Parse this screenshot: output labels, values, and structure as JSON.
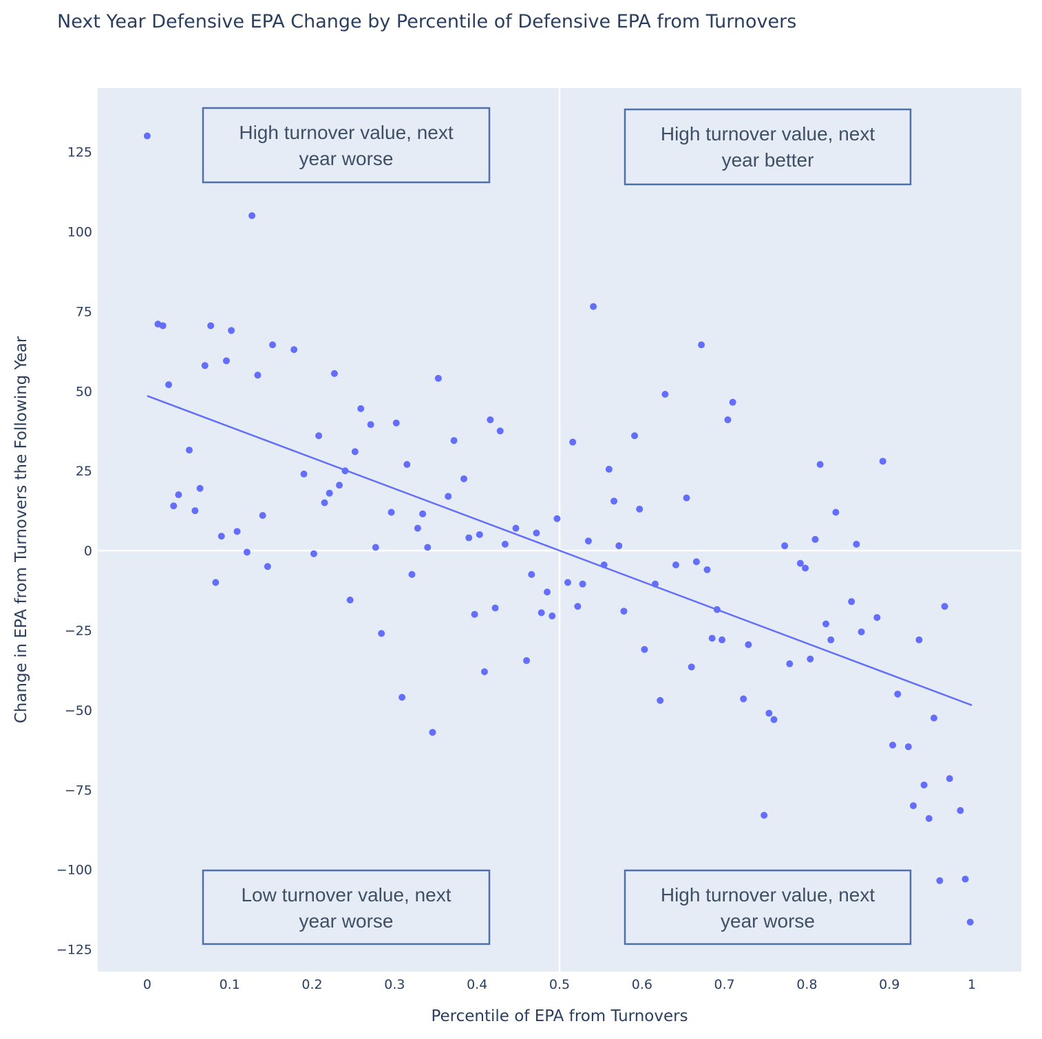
{
  "chart_data": {
    "type": "scatter",
    "title": "Next Year Defensive EPA Change by Percentile of Defensive EPA from Turnovers",
    "xlabel": "Percentile of EPA from Turnovers",
    "ylabel": "Change in EPA from Turnovers the Following Year",
    "xlim": [
      -0.06,
      1.06
    ],
    "ylim": [
      -132,
      145
    ],
    "x_ticks": [
      0,
      0.1,
      0.2,
      0.3,
      0.4,
      0.5,
      0.6,
      0.7,
      0.8,
      0.9,
      1
    ],
    "x_tick_labels": [
      "0",
      "0.1",
      "0.2",
      "0.3",
      "0.4",
      "0.5",
      "0.6",
      "0.7",
      "0.8",
      "0.9",
      "1"
    ],
    "y_ticks": [
      125,
      100,
      75,
      50,
      25,
      0,
      -25,
      -50,
      -75,
      -100,
      -125
    ],
    "y_tick_labels": [
      "125",
      "100",
      "75",
      "50",
      "25",
      "0",
      "−25",
      "−50",
      "−75",
      "−100",
      "−125"
    ],
    "reference_lines": {
      "x": 0.5,
      "y": 0
    },
    "marker_color": "#636efa",
    "plot_bg": "#e5ecf6",
    "trendline": {
      "x": [
        0,
        1
      ],
      "y": [
        48.5,
        -48.5
      ]
    },
    "points": [
      [
        0.0,
        130
      ],
      [
        0.013,
        71
      ],
      [
        0.019,
        70.5
      ],
      [
        0.026,
        52
      ],
      [
        0.032,
        14
      ],
      [
        0.038,
        17.5
      ],
      [
        0.051,
        31.5
      ],
      [
        0.058,
        12.5
      ],
      [
        0.064,
        19.5
      ],
      [
        0.07,
        58
      ],
      [
        0.077,
        70.5
      ],
      [
        0.083,
        -10
      ],
      [
        0.09,
        4.5
      ],
      [
        0.096,
        59.5
      ],
      [
        0.102,
        69
      ],
      [
        0.109,
        6
      ],
      [
        0.121,
        -0.5
      ],
      [
        0.127,
        105
      ],
      [
        0.134,
        55
      ],
      [
        0.14,
        11
      ],
      [
        0.146,
        -5
      ],
      [
        0.152,
        64.5
      ],
      [
        0.178,
        63
      ],
      [
        0.19,
        24
      ],
      [
        0.202,
        -1
      ],
      [
        0.208,
        36
      ],
      [
        0.215,
        15
      ],
      [
        0.221,
        18
      ],
      [
        0.227,
        55.5
      ],
      [
        0.233,
        20.5
      ],
      [
        0.24,
        25
      ],
      [
        0.246,
        -15.5
      ],
      [
        0.252,
        31
      ],
      [
        0.259,
        44.5
      ],
      [
        0.271,
        39.5
      ],
      [
        0.277,
        1
      ],
      [
        0.284,
        -26
      ],
      [
        0.296,
        12
      ],
      [
        0.302,
        40
      ],
      [
        0.309,
        -46
      ],
      [
        0.315,
        27
      ],
      [
        0.321,
        -7.5
      ],
      [
        0.328,
        7
      ],
      [
        0.334,
        11.5
      ],
      [
        0.34,
        1
      ],
      [
        0.346,
        -57
      ],
      [
        0.353,
        54
      ],
      [
        0.365,
        17
      ],
      [
        0.372,
        34.5
      ],
      [
        0.384,
        22.5
      ],
      [
        0.39,
        4
      ],
      [
        0.397,
        -20
      ],
      [
        0.403,
        5
      ],
      [
        0.409,
        -38
      ],
      [
        0.416,
        41
      ],
      [
        0.422,
        -18
      ],
      [
        0.428,
        37.5
      ],
      [
        0.434,
        2
      ],
      [
        0.447,
        7
      ],
      [
        0.46,
        -34.5
      ],
      [
        0.466,
        -7.5
      ],
      [
        0.472,
        5.5
      ],
      [
        0.478,
        -19.5
      ],
      [
        0.485,
        -13
      ],
      [
        0.491,
        -20.5
      ],
      [
        0.497,
        10
      ],
      [
        0.51,
        -10
      ],
      [
        0.516,
        34
      ],
      [
        0.522,
        -17.5
      ],
      [
        0.528,
        -10.5
      ],
      [
        0.535,
        3
      ],
      [
        0.541,
        76.5
      ],
      [
        0.554,
        -4.5
      ],
      [
        0.56,
        25.5
      ],
      [
        0.566,
        15.5
      ],
      [
        0.572,
        1.5
      ],
      [
        0.578,
        -19
      ],
      [
        0.591,
        36
      ],
      [
        0.597,
        13
      ],
      [
        0.603,
        -31
      ],
      [
        0.616,
        -10.5
      ],
      [
        0.622,
        -47
      ],
      [
        0.628,
        49
      ],
      [
        0.641,
        -4.5
      ],
      [
        0.654,
        16.5
      ],
      [
        0.66,
        -36.5
      ],
      [
        0.666,
        -3.5
      ],
      [
        0.672,
        64.5
      ],
      [
        0.679,
        -6
      ],
      [
        0.685,
        -27.5
      ],
      [
        0.691,
        -18.5
      ],
      [
        0.697,
        -28
      ],
      [
        0.704,
        41
      ],
      [
        0.71,
        46.5
      ],
      [
        0.723,
        -46.5
      ],
      [
        0.729,
        -29.5
      ],
      [
        0.748,
        -83
      ],
      [
        0.754,
        -51
      ],
      [
        0.76,
        -53
      ],
      [
        0.773,
        1.5
      ],
      [
        0.779,
        -35.5
      ],
      [
        0.792,
        -4
      ],
      [
        0.798,
        -5.5
      ],
      [
        0.804,
        -34
      ],
      [
        0.81,
        3.5
      ],
      [
        0.816,
        27
      ],
      [
        0.823,
        -23
      ],
      [
        0.829,
        -28
      ],
      [
        0.835,
        12
      ],
      [
        0.854,
        -16
      ],
      [
        0.86,
        2
      ],
      [
        0.866,
        -25.5
      ],
      [
        0.885,
        -21
      ],
      [
        0.892,
        28
      ],
      [
        0.904,
        -61
      ],
      [
        0.91,
        -45
      ],
      [
        0.923,
        -61.5
      ],
      [
        0.929,
        -80
      ],
      [
        0.936,
        -28
      ],
      [
        0.942,
        -73.5
      ],
      [
        0.948,
        -84
      ],
      [
        0.954,
        -52.5
      ],
      [
        0.961,
        -103.5
      ],
      [
        0.967,
        -17.5
      ],
      [
        0.973,
        -71.5
      ],
      [
        0.986,
        -81.5
      ],
      [
        0.992,
        -103
      ],
      [
        0.998,
        -116.5
      ]
    ],
    "annotations": [
      {
        "text": "High turnover value, next year worse",
        "lines": [
          "High turnover value, next",
          "year worse"
        ]
      },
      {
        "text": "High turnover value, next year better",
        "lines": [
          "High turnover value, next",
          "year better"
        ]
      },
      {
        "text": "Low turnover value, next year worse",
        "lines": [
          "Low turnover value, next",
          "year worse"
        ]
      },
      {
        "text": "High turnover value, next year worse",
        "lines": [
          "High turnover value, next",
          "year worse"
        ]
      }
    ]
  }
}
